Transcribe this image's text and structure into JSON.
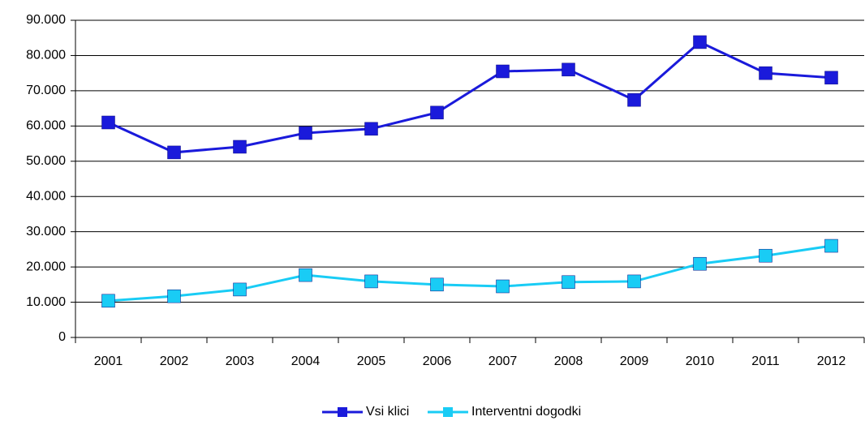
{
  "chart_data": {
    "type": "line",
    "categories": [
      "2001",
      "2002",
      "2003",
      "2004",
      "2005",
      "2006",
      "2007",
      "2008",
      "2009",
      "2010",
      "2011",
      "2012"
    ],
    "series": [
      {
        "name": "Vsi klici",
        "color": "#1a1adb",
        "values": [
          61000,
          52500,
          54100,
          58000,
          59200,
          63800,
          75500,
          76000,
          67400,
          83800,
          75000,
          73700
        ]
      },
      {
        "name": "Interventni dogodki",
        "color": "#19ccf5",
        "values": [
          10400,
          11700,
          13600,
          17700,
          15900,
          15000,
          14500,
          15700,
          15900,
          20900,
          23200,
          26000
        ]
      }
    ],
    "ylim": [
      0,
      90000
    ],
    "yticks": [
      0,
      {
        "value": 10000,
        "label": "10.000"
      },
      {
        "value": 20000,
        "label": "20.000"
      },
      {
        "value": 30000,
        "label": "30.000"
      },
      {
        "value": 40000,
        "label": "40.000"
      },
      {
        "value": 50000,
        "label": "50.000"
      },
      {
        "value": 60000,
        "label": "60.000"
      },
      {
        "value": 70000,
        "label": "70.000"
      },
      {
        "value": 80000,
        "label": "80.000"
      },
      {
        "value": 90000,
        "label": "90.000"
      }
    ],
    "grid": true,
    "legend": "bottom"
  }
}
